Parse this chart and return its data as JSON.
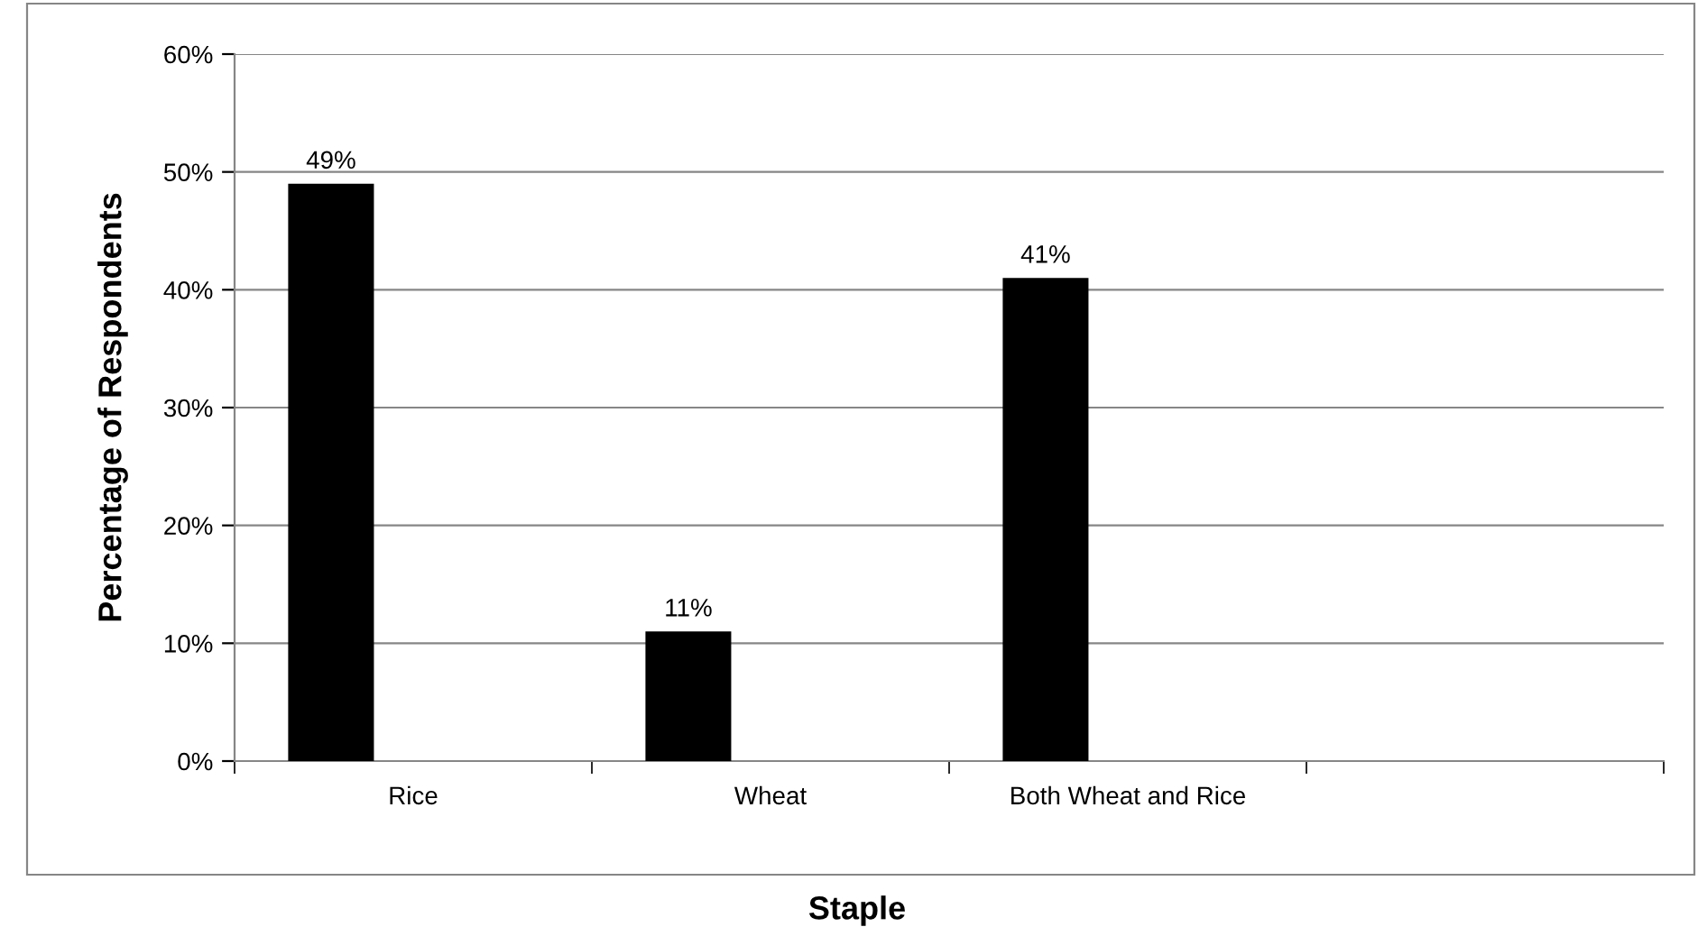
{
  "chart_data": {
    "type": "bar",
    "xlabel": "Staple",
    "ylabel": "Percentage of Respondents",
    "categories": [
      "Rice",
      "Wheat",
      "Both Wheat and Rice",
      null
    ],
    "values": [
      49,
      11,
      41,
      null
    ],
    "color": "#000000",
    "ylim": [
      0,
      60
    ],
    "yticks": [
      {
        "value": 0,
        "label": "0%"
      },
      {
        "value": 10,
        "label": "10%"
      },
      {
        "value": 20,
        "label": "20%"
      },
      {
        "value": 30,
        "label": "30%"
      },
      {
        "value": 40,
        "label": "40%"
      },
      {
        "value": 50,
        "label": "50%"
      },
      {
        "value": 60,
        "label": "60%"
      }
    ],
    "value_labels": [
      "49%",
      "11%",
      "41%",
      null
    ],
    "grid": "y"
  }
}
